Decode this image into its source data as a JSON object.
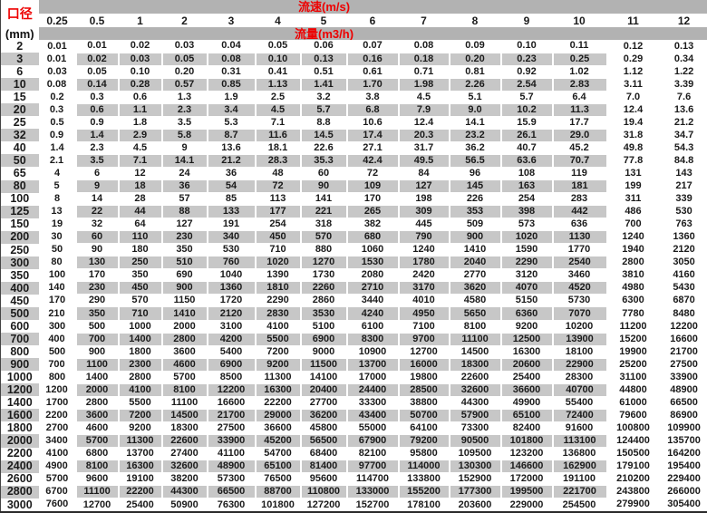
{
  "header": {
    "corner_top": "口径",
    "corner_bottom": "(mm)",
    "velocity_label": "流速(m/s)",
    "flow_label": "流量(m3/h)"
  },
  "colors": {
    "band_gray": "#b2b2b2",
    "stripe_gray": "#c7c7c7",
    "label_red": "#ee0000",
    "text": "#1b1b1b"
  },
  "table": {
    "columns": [
      "0.25",
      "0.5",
      "1",
      "2",
      "3",
      "4",
      "5",
      "6",
      "7",
      "8",
      "9",
      "10",
      "11",
      "12"
    ],
    "rows": [
      {
        "d": "2",
        "v": [
          "0.01",
          "0.01",
          "0.02",
          "0.03",
          "0.04",
          "0.05",
          "0.06",
          "0.07",
          "0.08",
          "0.09",
          "0.10",
          "0.11",
          "0.12",
          "0.13"
        ]
      },
      {
        "d": "3",
        "v": [
          "0.01",
          "0.02",
          "0.03",
          "0.05",
          "0.08",
          "0.10",
          "0.13",
          "0.16",
          "0.18",
          "0.20",
          "0.23",
          "0.25",
          "0.29",
          "0.34"
        ]
      },
      {
        "d": "6",
        "v": [
          "0.03",
          "0.05",
          "0.10",
          "0.20",
          "0.31",
          "0.41",
          "0.51",
          "0.61",
          "0.71",
          "0.81",
          "0.92",
          "1.02",
          "1.12",
          "1.22"
        ]
      },
      {
        "d": "10",
        "v": [
          "0.08",
          "0.14",
          "0.28",
          "0.57",
          "0.85",
          "1.13",
          "1.41",
          "1.70",
          "1.98",
          "2.26",
          "2.54",
          "2.83",
          "3.11",
          "3.39"
        ]
      },
      {
        "d": "15",
        "v": [
          "0.2",
          "0.3",
          "0.6",
          "1.3",
          "1.9",
          "2.5",
          "3.2",
          "3.8",
          "4.5",
          "5.1",
          "5.7",
          "6.4",
          "7.0",
          "7.6"
        ]
      },
      {
        "d": "20",
        "v": [
          "0.3",
          "0.6",
          "1.1",
          "2.3",
          "3.4",
          "4.5",
          "5.7",
          "6.8",
          "7.9",
          "9.0",
          "10.2",
          "11.3",
          "12.4",
          "13.6"
        ]
      },
      {
        "d": "25",
        "v": [
          "0.5",
          "0.9",
          "1.8",
          "3.5",
          "5.3",
          "7.1",
          "8.8",
          "10.6",
          "12.4",
          "14.1",
          "15.9",
          "17.7",
          "19.4",
          "21.2"
        ]
      },
      {
        "d": "32",
        "v": [
          "0.9",
          "1.4",
          "2.9",
          "5.8",
          "8.7",
          "11.6",
          "14.5",
          "17.4",
          "20.3",
          "23.2",
          "26.1",
          "29.0",
          "31.8",
          "34.7"
        ]
      },
      {
        "d": "40",
        "v": [
          "1.4",
          "2.3",
          "4.5",
          "9",
          "13.6",
          "18.1",
          "22.6",
          "27.1",
          "31.7",
          "36.2",
          "40.7",
          "45.2",
          "49.8",
          "54.3"
        ]
      },
      {
        "d": "50",
        "v": [
          "2.1",
          "3.5",
          "7.1",
          "14.1",
          "21.2",
          "28.3",
          "35.3",
          "42.4",
          "49.5",
          "56.5",
          "63.6",
          "70.7",
          "77.8",
          "84.8"
        ]
      },
      {
        "d": "65",
        "v": [
          "4",
          "6",
          "12",
          "24",
          "36",
          "48",
          "60",
          "72",
          "84",
          "96",
          "108",
          "119",
          "131",
          "143"
        ]
      },
      {
        "d": "80",
        "v": [
          "5",
          "9",
          "18",
          "36",
          "54",
          "72",
          "90",
          "109",
          "127",
          "145",
          "163",
          "181",
          "199",
          "217"
        ]
      },
      {
        "d": "100",
        "v": [
          "8",
          "14",
          "28",
          "57",
          "85",
          "113",
          "141",
          "170",
          "198",
          "226",
          "254",
          "283",
          "311",
          "339"
        ]
      },
      {
        "d": "125",
        "v": [
          "13",
          "22",
          "44",
          "88",
          "133",
          "177",
          "221",
          "265",
          "309",
          "353",
          "398",
          "442",
          "486",
          "530"
        ]
      },
      {
        "d": "150",
        "v": [
          "19",
          "32",
          "64",
          "127",
          "191",
          "254",
          "318",
          "382",
          "445",
          "509",
          "573",
          "636",
          "700",
          "763"
        ]
      },
      {
        "d": "200",
        "v": [
          "30",
          "60",
          "110",
          "230",
          "340",
          "450",
          "570",
          "680",
          "790",
          "900",
          "1020",
          "1130",
          "1240",
          "1360"
        ]
      },
      {
        "d": "250",
        "v": [
          "50",
          "90",
          "180",
          "350",
          "530",
          "710",
          "880",
          "1060",
          "1240",
          "1410",
          "1590",
          "1770",
          "1940",
          "2120"
        ]
      },
      {
        "d": "300",
        "v": [
          "80",
          "130",
          "250",
          "510",
          "760",
          "1020",
          "1270",
          "1530",
          "1780",
          "2040",
          "2290",
          "2540",
          "2800",
          "3050"
        ]
      },
      {
        "d": "350",
        "v": [
          "100",
          "170",
          "350",
          "690",
          "1040",
          "1390",
          "1730",
          "2080",
          "2420",
          "2770",
          "3120",
          "3460",
          "3810",
          "4160"
        ]
      },
      {
        "d": "400",
        "v": [
          "140",
          "230",
          "450",
          "900",
          "1360",
          "1810",
          "2260",
          "2710",
          "3170",
          "3620",
          "4070",
          "4520",
          "4980",
          "5430"
        ]
      },
      {
        "d": "450",
        "v": [
          "170",
          "290",
          "570",
          "1150",
          "1720",
          "2290",
          "2860",
          "3440",
          "4010",
          "4580",
          "5150",
          "5730",
          "6300",
          "6870"
        ]
      },
      {
        "d": "500",
        "v": [
          "210",
          "350",
          "710",
          "1410",
          "2120",
          "2830",
          "3530",
          "4240",
          "4950",
          "5650",
          "6360",
          "7070",
          "7780",
          "8480"
        ]
      },
      {
        "d": "600",
        "v": [
          "300",
          "500",
          "1000",
          "2000",
          "3100",
          "4100",
          "5100",
          "6100",
          "7100",
          "8100",
          "9200",
          "10200",
          "11200",
          "12200"
        ]
      },
      {
        "d": "700",
        "v": [
          "400",
          "700",
          "1400",
          "2800",
          "4200",
          "5500",
          "6900",
          "8300",
          "9700",
          "11100",
          "12500",
          "13900",
          "15200",
          "16600"
        ]
      },
      {
        "d": "800",
        "v": [
          "500",
          "900",
          "1800",
          "3600",
          "5400",
          "7200",
          "9000",
          "10900",
          "12700",
          "14500",
          "16300",
          "18100",
          "19900",
          "21700"
        ]
      },
      {
        "d": "900",
        "v": [
          "700",
          "1100",
          "2300",
          "4600",
          "6900",
          "9200",
          "11500",
          "13700",
          "16000",
          "18300",
          "20600",
          "22900",
          "25200",
          "27500"
        ]
      },
      {
        "d": "1000",
        "v": [
          "800",
          "1400",
          "2800",
          "5700",
          "8500",
          "11300",
          "14100",
          "17000",
          "19800",
          "22600",
          "25400",
          "28300",
          "31100",
          "33900"
        ]
      },
      {
        "d": "1200",
        "v": [
          "1200",
          "2000",
          "4100",
          "8100",
          "12200",
          "16300",
          "20400",
          "24400",
          "28500",
          "32600",
          "36600",
          "40700",
          "44800",
          "48900"
        ]
      },
      {
        "d": "1400",
        "v": [
          "1700",
          "2800",
          "5500",
          "11100",
          "16600",
          "22200",
          "27700",
          "33300",
          "38800",
          "44300",
          "49900",
          "55400",
          "61000",
          "66500"
        ]
      },
      {
        "d": "1600",
        "v": [
          "2200",
          "3600",
          "7200",
          "14500",
          "21700",
          "29000",
          "36200",
          "43400",
          "50700",
          "57900",
          "65100",
          "72400",
          "79600",
          "86900"
        ]
      },
      {
        "d": "1800",
        "v": [
          "2700",
          "4600",
          "9200",
          "18300",
          "27500",
          "36600",
          "45800",
          "55000",
          "64100",
          "73300",
          "82400",
          "91600",
          "100800",
          "109900"
        ]
      },
      {
        "d": "2000",
        "v": [
          "3400",
          "5700",
          "11300",
          "22600",
          "33900",
          "45200",
          "56500",
          "67900",
          "79200",
          "90500",
          "101800",
          "113100",
          "124400",
          "135700"
        ]
      },
      {
        "d": "2200",
        "v": [
          "4100",
          "6800",
          "13700",
          "27400",
          "41100",
          "54700",
          "68400",
          "82100",
          "95800",
          "109500",
          "123200",
          "136800",
          "150500",
          "164200"
        ]
      },
      {
        "d": "2400",
        "v": [
          "4900",
          "8100",
          "16300",
          "32600",
          "48900",
          "65100",
          "81400",
          "97700",
          "114000",
          "130300",
          "146600",
          "162900",
          "179100",
          "195400"
        ]
      },
      {
        "d": "2600",
        "v": [
          "5700",
          "9600",
          "19100",
          "38200",
          "57300",
          "76500",
          "95600",
          "114700",
          "133800",
          "152900",
          "172000",
          "191100",
          "210200",
          "229400"
        ]
      },
      {
        "d": "2800",
        "v": [
          "6700",
          "11100",
          "22200",
          "44300",
          "66500",
          "88700",
          "110800",
          "133000",
          "155200",
          "177300",
          "199500",
          "221700",
          "243800",
          "266000"
        ]
      },
      {
        "d": "3000",
        "v": [
          "7600",
          "12700",
          "25400",
          "50900",
          "76300",
          "101800",
          "127200",
          "152700",
          "178100",
          "203600",
          "229000",
          "254500",
          "279900",
          "305400"
        ]
      }
    ]
  }
}
